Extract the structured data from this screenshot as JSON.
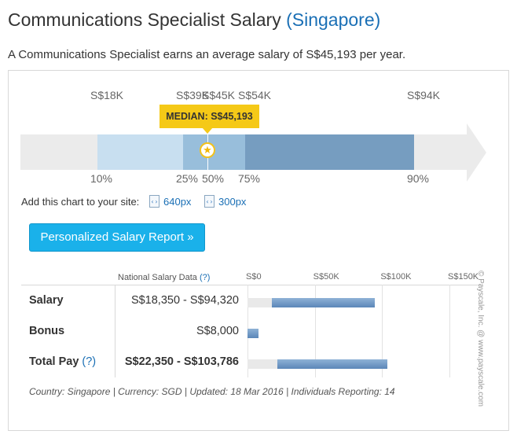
{
  "header": {
    "title": "Communications Specialist Salary",
    "location": "(Singapore)",
    "summary": "A Communications Specialist earns an average salary of S$45,193 per year."
  },
  "chart_data": [
    {
      "type": "bar",
      "title": "",
      "percentiles": [
        {
          "label": "10%",
          "value_label": "S$18K",
          "value": 18000
        },
        {
          "label": "25%",
          "value_label": "S$39K",
          "value": 39000
        },
        {
          "label": "50%",
          "value_label": "S$45K",
          "value": 45000
        },
        {
          "label": "75%",
          "value_label": "S$54K",
          "value": 54000
        },
        {
          "label": "90%",
          "value_label": "S$94K",
          "value": 94000
        }
      ],
      "median_label": "MEDIAN: S$45,193",
      "median_value": 45193,
      "colors": {
        "outer_band": "#c8dff0",
        "middle_band": "#98bedb",
        "inner_band": "#769dc0",
        "median": "#f5c917"
      }
    },
    {
      "type": "bar",
      "title": "",
      "column_header": "National Salary Data",
      "column_header_help": "(?)",
      "scale_ticks": [
        "S$0",
        "S$50K",
        "S$100K",
        "S$150K"
      ],
      "xlim": [
        0,
        150000
      ],
      "rows": [
        {
          "label": "Salary",
          "help": "",
          "value_text": "S$18,350 - S$94,320",
          "low": 18350,
          "high": 94320,
          "bold": false
        },
        {
          "label": "Bonus",
          "help": "",
          "value_text": "S$8,000",
          "low": 0,
          "high": 8000,
          "bold": false
        },
        {
          "label": "Total Pay",
          "help": "(?)",
          "value_text": "S$22,350 - S$103,786",
          "low": 22350,
          "high": 103786,
          "bold": true
        }
      ],
      "bar_color": "#5b86b8"
    }
  ],
  "embed": {
    "label": "Add this chart to your site:",
    "options": [
      "640px",
      "300px"
    ]
  },
  "cta": {
    "label": "Personalized Salary Report »",
    "color": "#1ab1ea"
  },
  "footer": {
    "text": "Country: Singapore | Currency: SGD | Updated: 18 Mar 2016 | Individuals Reporting: 14"
  },
  "watermark": "© Payscale, Inc. @ www.payscale.com"
}
